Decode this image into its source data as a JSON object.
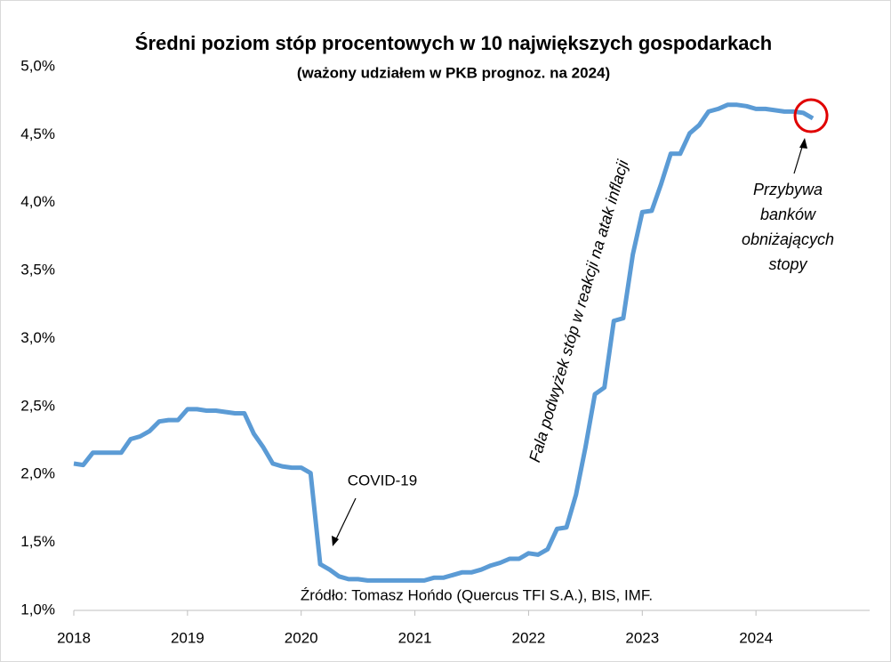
{
  "chart_data": {
    "type": "line",
    "title": "Średni poziom stóp procentowych w 10 największych gospodarkach",
    "subtitle": "(ważony udziałem w PKB prognoz. na 2024)",
    "x": [
      2018,
      2018.083,
      2018.167,
      2018.25,
      2018.333,
      2018.417,
      2018.5,
      2018.583,
      2018.667,
      2018.75,
      2018.833,
      2018.917,
      2019,
      2019.083,
      2019.167,
      2019.25,
      2019.333,
      2019.417,
      2019.5,
      2019.583,
      2019.667,
      2019.75,
      2019.833,
      2019.917,
      2020,
      2020.083,
      2020.167,
      2020.25,
      2020.333,
      2020.417,
      2020.5,
      2020.583,
      2020.667,
      2020.75,
      2020.833,
      2020.917,
      2021,
      2021.083,
      2021.167,
      2021.25,
      2021.333,
      2021.417,
      2021.5,
      2021.583,
      2021.667,
      2021.75,
      2021.833,
      2021.917,
      2022,
      2022.083,
      2022.167,
      2022.25,
      2022.333,
      2022.417,
      2022.5,
      2022.583,
      2022.667,
      2022.75,
      2022.833,
      2022.917,
      2023,
      2023.083,
      2023.167,
      2023.25,
      2023.333,
      2023.417,
      2023.5,
      2023.583,
      2023.667,
      2023.75,
      2023.833,
      2023.917,
      2024,
      2024.083,
      2024.167,
      2024.25,
      2024.333,
      2024.417,
      2024.5
    ],
    "series": [
      {
        "color": "#5b9bd5",
        "values": [
          2.08,
          2.07,
          2.16,
          2.16,
          2.16,
          2.16,
          2.26,
          2.28,
          2.32,
          2.39,
          2.4,
          2.4,
          2.48,
          2.48,
          2.47,
          2.47,
          2.46,
          2.45,
          2.45,
          2.3,
          2.2,
          2.08,
          2.06,
          2.05,
          2.05,
          2.01,
          1.34,
          1.3,
          1.25,
          1.23,
          1.23,
          1.22,
          1.22,
          1.22,
          1.22,
          1.22,
          1.22,
          1.22,
          1.24,
          1.24,
          1.26,
          1.28,
          1.28,
          1.3,
          1.33,
          1.35,
          1.38,
          1.38,
          1.42,
          1.41,
          1.45,
          1.6,
          1.61,
          1.85,
          2.2,
          2.59,
          2.64,
          3.13,
          3.15,
          3.62,
          3.93,
          3.94,
          4.14,
          4.36,
          4.36,
          4.51,
          4.57,
          4.67,
          4.69,
          4.72,
          4.72,
          4.71,
          4.69,
          4.69,
          4.68,
          4.67,
          4.67,
          4.66,
          4.62
        ]
      }
    ],
    "xlim": [
      2018,
      2025
    ],
    "xticks": [
      2018,
      2019,
      2020,
      2021,
      2022,
      2023,
      2024
    ],
    "ylim": [
      1,
      5
    ],
    "yticks": [
      {
        "value": 1,
        "label": "1,0%"
      },
      {
        "value": 1.5,
        "label": "1,5%"
      },
      {
        "value": 2,
        "label": "2,0%"
      },
      {
        "value": 2.5,
        "label": "2,5%"
      },
      {
        "value": 3,
        "label": "3,0%"
      },
      {
        "value": 3.5,
        "label": "3,5%"
      },
      {
        "value": 4,
        "label": "4,0%"
      },
      {
        "value": 4.5,
        "label": "4,5%"
      },
      {
        "value": 5,
        "label": "5,0%"
      }
    ],
    "grid": false,
    "annotations": {
      "covid": "COVID-19",
      "wave": "Fala podwyżek stóp w reakcji na atak inflacji",
      "cut": [
        "Przybywa",
        "banków",
        "obniżających",
        "stopy"
      ]
    },
    "source": "Źródło: Tomasz Hońdo (Quercus TFI S.A.), BIS, IMF."
  }
}
